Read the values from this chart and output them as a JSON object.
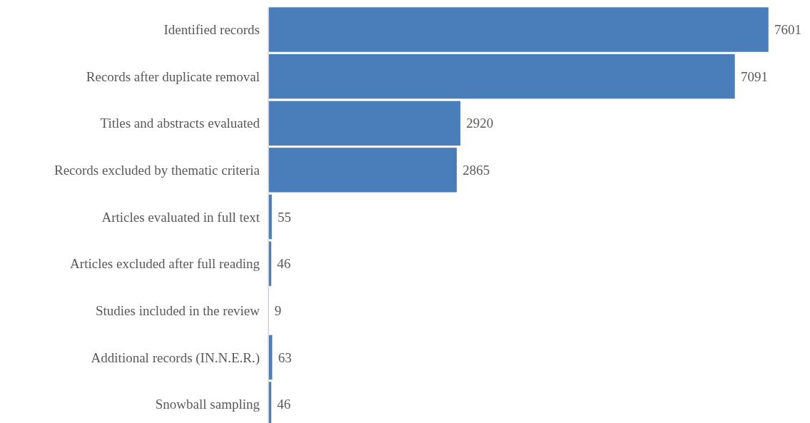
{
  "chart_data": {
    "type": "bar",
    "orientation": "horizontal",
    "categories": [
      "Identified records",
      "Records after duplicate removal",
      "Titles and abstracts evaluated",
      "Records excluded by thematic criteria",
      "Articles evaluated in full text",
      "Articles excluded after full reading",
      "Studies included in the review",
      "Additional records (IN.N.E.R.)",
      "Snowball sampling"
    ],
    "values": [
      7601,
      7091,
      2920,
      2865,
      55,
      46,
      9,
      63,
      46
    ],
    "color": "#4a7ebb",
    "data_labels": true
  }
}
